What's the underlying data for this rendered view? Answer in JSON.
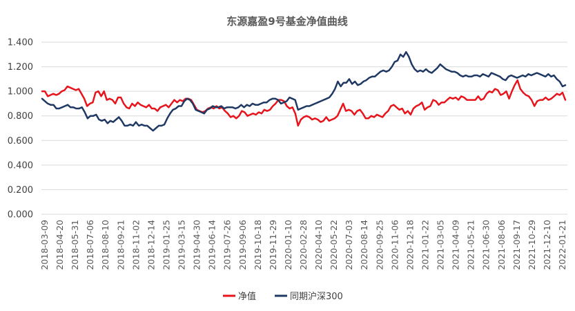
{
  "chart_data": {
    "type": "line",
    "title": "东源嘉盈9号基金净值曲线",
    "xlabel": "",
    "ylabel": "",
    "ylim": [
      0,
      1.4
    ],
    "y_ticks": [
      "0.000",
      "0.200",
      "0.400",
      "0.600",
      "0.800",
      "1.000",
      "1.200",
      "1.400"
    ],
    "grid": "horizontal",
    "legend_position": "bottom",
    "x_tick_labels": [
      "2018-03-09",
      "2018-04-20",
      "2018-05-31",
      "2018-07-06",
      "2018-08-10",
      "2018-09-21",
      "2018-11-02",
      "2018-12-14",
      "2019-01-25",
      "2019-03-15",
      "2019-04-30",
      "2019-06-14",
      "2019-07-26",
      "2019-09-06",
      "2019-10-18",
      "2019-11-29",
      "2020-01-10",
      "2020-02-28",
      "2020-04-10",
      "2020-05-22",
      "2020-07-03",
      "2020-08-14",
      "2020-09-25",
      "2020-11-06",
      "2020-12-18",
      "2021-01-22",
      "2021-03-05",
      "2021-04-09",
      "2021-05-21",
      "2021-06-30",
      "2021-08-06",
      "2021-09-17",
      "2021-10-29",
      "2021-12-10",
      "2022-01-21"
    ],
    "series": [
      {
        "name": "净值",
        "color": "#e8141c",
        "values": [
          1.0,
          1.0,
          0.96,
          0.97,
          0.98,
          0.97,
          0.98,
          1.0,
          1.01,
          1.04,
          1.03,
          1.02,
          1.01,
          1.02,
          0.98,
          0.94,
          0.88,
          0.9,
          0.91,
          0.99,
          1.0,
          0.96,
          1.0,
          0.93,
          0.94,
          0.93,
          0.9,
          0.95,
          0.95,
          0.9,
          0.87,
          0.86,
          0.9,
          0.88,
          0.91,
          0.89,
          0.88,
          0.87,
          0.89,
          0.86,
          0.86,
          0.84,
          0.87,
          0.88,
          0.89,
          0.87,
          0.9,
          0.93,
          0.91,
          0.93,
          0.92,
          0.94,
          0.94,
          0.93,
          0.89,
          0.85,
          0.84,
          0.83,
          0.84,
          0.86,
          0.87,
          0.86,
          0.88,
          0.86,
          0.87,
          0.84,
          0.82,
          0.79,
          0.8,
          0.78,
          0.8,
          0.84,
          0.83,
          0.8,
          0.81,
          0.82,
          0.81,
          0.83,
          0.82,
          0.85,
          0.84,
          0.85,
          0.88,
          0.9,
          0.93,
          0.93,
          0.92,
          0.88,
          0.86,
          0.87,
          0.82,
          0.72,
          0.77,
          0.79,
          0.8,
          0.79,
          0.77,
          0.78,
          0.77,
          0.75,
          0.76,
          0.79,
          0.76,
          0.77,
          0.78,
          0.8,
          0.85,
          0.9,
          0.84,
          0.85,
          0.84,
          0.81,
          0.84,
          0.85,
          0.82,
          0.78,
          0.78,
          0.8,
          0.79,
          0.81,
          0.8,
          0.79,
          0.82,
          0.84,
          0.88,
          0.89,
          0.87,
          0.85,
          0.86,
          0.82,
          0.84,
          0.81,
          0.86,
          0.88,
          0.89,
          0.91,
          0.85,
          0.87,
          0.88,
          0.93,
          0.92,
          0.89,
          0.91,
          0.91,
          0.93,
          0.95,
          0.94,
          0.95,
          0.93,
          0.96,
          0.95,
          0.93,
          0.93,
          0.93,
          0.93,
          0.96,
          0.93,
          0.94,
          0.98,
          1.0,
          0.99,
          1.02,
          1.01,
          0.97,
          0.98,
          1.0,
          0.94,
          1.0,
          1.05,
          1.09,
          1.02,
          0.99,
          0.97,
          0.96,
          0.93,
          0.88,
          0.92,
          0.93,
          0.93,
          0.95,
          0.93,
          0.94,
          0.96,
          0.98,
          0.97,
          0.99,
          0.93
        ]
      },
      {
        "name": "同期沪深300",
        "color": "#1f3864",
        "values": [
          0.94,
          0.92,
          0.9,
          0.89,
          0.89,
          0.86,
          0.86,
          0.87,
          0.88,
          0.89,
          0.87,
          0.87,
          0.86,
          0.86,
          0.87,
          0.83,
          0.78,
          0.8,
          0.8,
          0.81,
          0.77,
          0.76,
          0.77,
          0.74,
          0.76,
          0.75,
          0.77,
          0.79,
          0.76,
          0.72,
          0.72,
          0.73,
          0.72,
          0.75,
          0.72,
          0.73,
          0.72,
          0.72,
          0.7,
          0.68,
          0.7,
          0.72,
          0.72,
          0.73,
          0.78,
          0.82,
          0.85,
          0.86,
          0.88,
          0.88,
          0.92,
          0.94,
          0.93,
          0.9,
          0.85,
          0.84,
          0.83,
          0.82,
          0.85,
          0.86,
          0.88,
          0.87,
          0.87,
          0.88,
          0.86,
          0.87,
          0.87,
          0.87,
          0.86,
          0.87,
          0.89,
          0.87,
          0.89,
          0.88,
          0.9,
          0.89,
          0.89,
          0.9,
          0.91,
          0.91,
          0.93,
          0.94,
          0.94,
          0.93,
          0.9,
          0.91,
          0.92,
          0.95,
          0.94,
          0.93,
          0.85,
          0.86,
          0.87,
          0.88,
          0.88,
          0.89,
          0.9,
          0.91,
          0.92,
          0.93,
          0.94,
          0.95,
          0.98,
          1.02,
          1.08,
          1.04,
          1.07,
          1.07,
          1.1,
          1.06,
          1.08,
          1.05,
          1.06,
          1.08,
          1.09,
          1.11,
          1.12,
          1.12,
          1.14,
          1.16,
          1.17,
          1.16,
          1.17,
          1.2,
          1.24,
          1.25,
          1.3,
          1.28,
          1.32,
          1.28,
          1.22,
          1.18,
          1.16,
          1.17,
          1.16,
          1.18,
          1.16,
          1.15,
          1.17,
          1.19,
          1.22,
          1.2,
          1.18,
          1.17,
          1.16,
          1.16,
          1.15,
          1.13,
          1.12,
          1.13,
          1.12,
          1.12,
          1.13,
          1.13,
          1.12,
          1.14,
          1.13,
          1.12,
          1.15,
          1.14,
          1.13,
          1.12,
          1.1,
          1.09,
          1.12,
          1.13,
          1.12,
          1.11,
          1.12,
          1.13,
          1.12,
          1.14,
          1.13,
          1.14,
          1.15,
          1.14,
          1.13,
          1.12,
          1.14,
          1.12,
          1.13,
          1.1,
          1.08,
          1.04,
          1.05
        ]
      }
    ]
  }
}
